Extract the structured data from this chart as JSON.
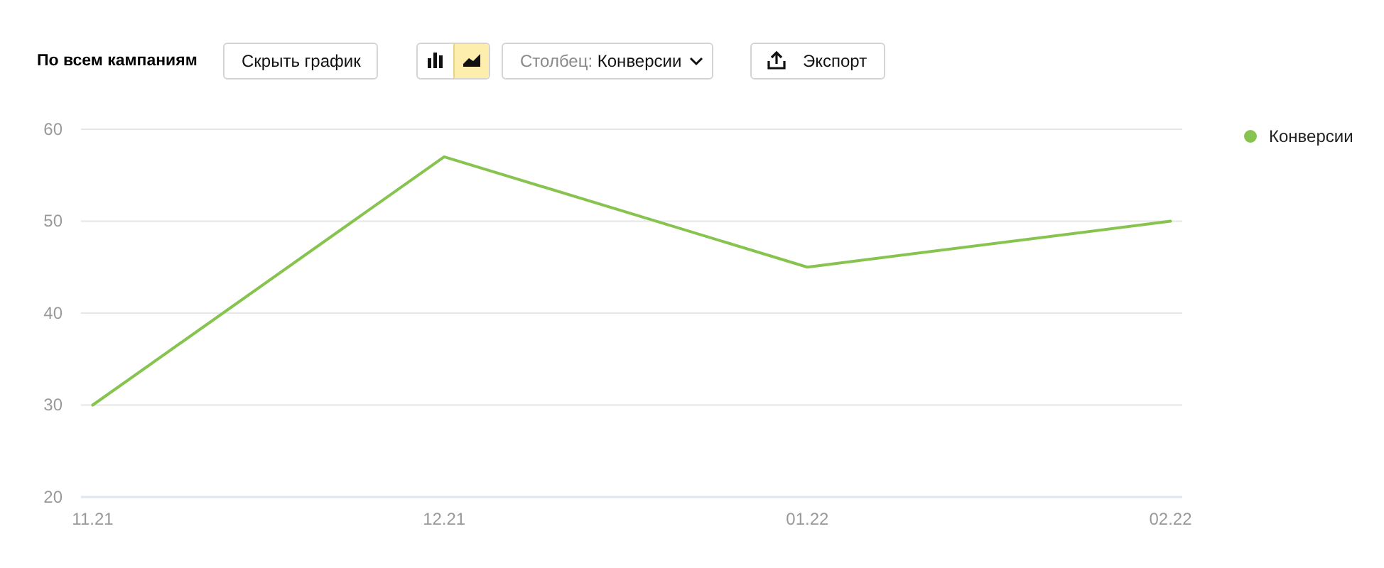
{
  "chart_data": {
    "type": "line",
    "title": "По всем кампаниям",
    "annotations": [
      "Скрыть график",
      "Столбец: Конверсии",
      "Экспорт"
    ],
    "x": [
      "2021-11",
      "2021-12",
      "2022-01",
      "2022-02"
    ],
    "series": [
      {
        "name": "Конверсии",
        "color": "#86c34f",
        "values": [
          30,
          57,
          45,
          50
        ]
      }
    ],
    "xlim": [
      "2021-10-31",
      "2022-02-02"
    ],
    "xticks": [
      {
        "value": "2021-11",
        "label": "11.21"
      },
      {
        "value": "2021-12",
        "label": "12.21"
      },
      {
        "value": "2022-01",
        "label": "01.22"
      },
      {
        "value": "2022-02",
        "label": "02.22"
      }
    ],
    "ylim": [
      20,
      60
    ],
    "yticks": [
      20,
      30,
      40,
      50,
      60
    ],
    "grid": "y",
    "legend": "top right"
  }
}
